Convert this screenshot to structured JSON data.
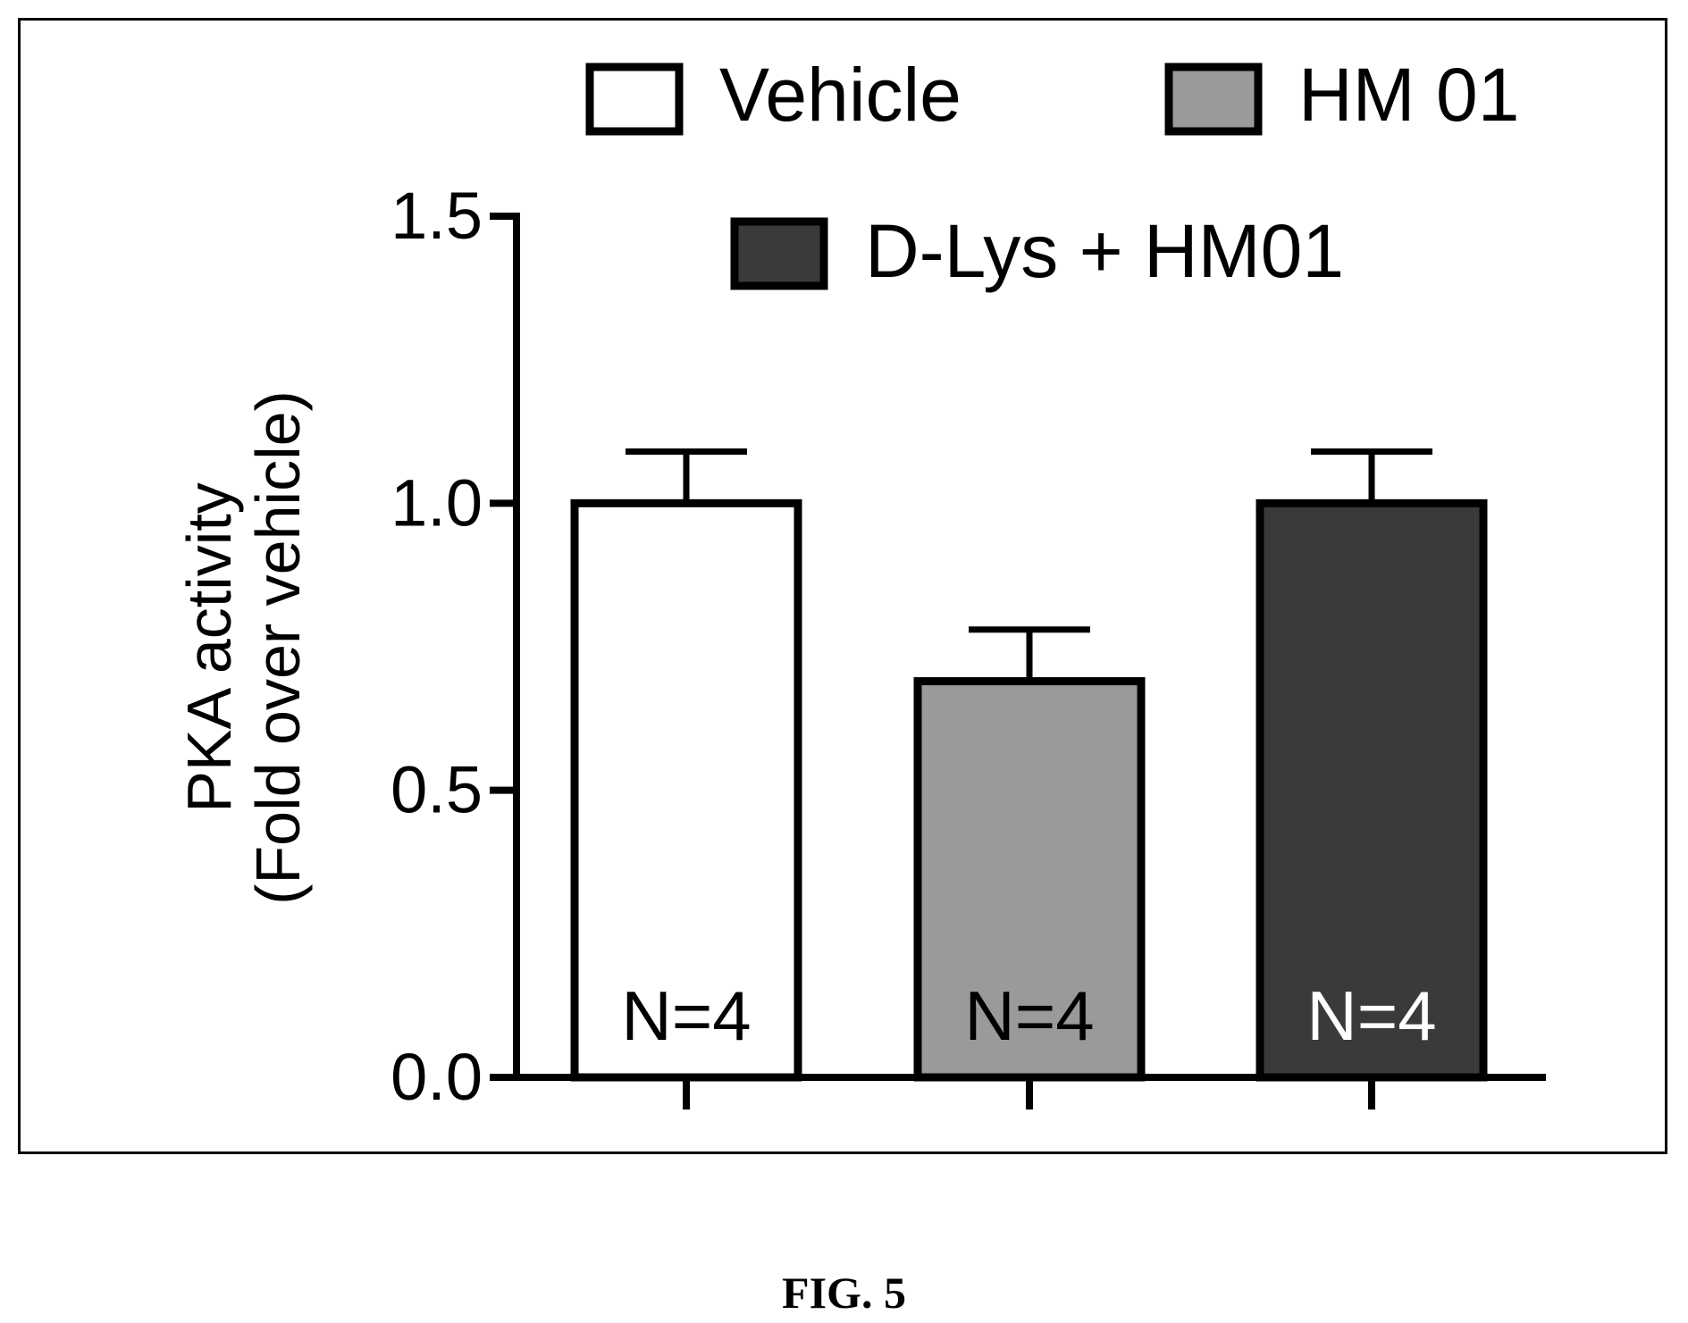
{
  "caption": "FIG. 5",
  "chart_data": {
    "type": "bar",
    "title": "",
    "xlabel": "",
    "ylabel_lines": [
      "PKA activity",
      "(Fold over vehicle)"
    ],
    "ylim": [
      0,
      1.5
    ],
    "yticks": [
      0.0,
      0.5,
      1.0,
      1.5
    ],
    "ytick_labels": [
      "0.0",
      "0.5",
      "1.0",
      "1.5"
    ],
    "grid": false,
    "legend_position": "top",
    "categories": [
      "Vehicle",
      "HM 01",
      "D-Lys + HM01"
    ],
    "values": [
      1.0,
      0.69,
      1.0
    ],
    "errors": [
      0.09,
      0.09,
      0.09
    ],
    "bar_labels": [
      "N=4",
      "N=4",
      "N=4"
    ],
    "colors": [
      "#ffffff",
      "#9a9a9a",
      "#3a3a3a"
    ],
    "label_colors": [
      "#000000",
      "#000000",
      "#ffffff"
    ],
    "legend": [
      {
        "label": "Vehicle",
        "color": "#ffffff"
      },
      {
        "label": "HM 01",
        "color": "#9a9a9a"
      },
      {
        "label": "D-Lys + HM01",
        "color": "#3a3a3a"
      }
    ]
  }
}
